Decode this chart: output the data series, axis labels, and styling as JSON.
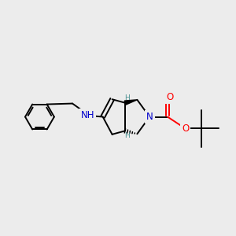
{
  "bg_color": "#ececec",
  "bond_color": "#000000",
  "N_color": "#0000cc",
  "O_color": "#ff0000",
  "H_stereo_color": "#4a9090",
  "NH_color": "#0000cc",
  "bond_width": 1.4,
  "font_size_atom": 8.5,
  "font_size_H": 6.5,
  "title": "",
  "xlim": [
    0,
    10
  ],
  "ylim": [
    0,
    10
  ]
}
